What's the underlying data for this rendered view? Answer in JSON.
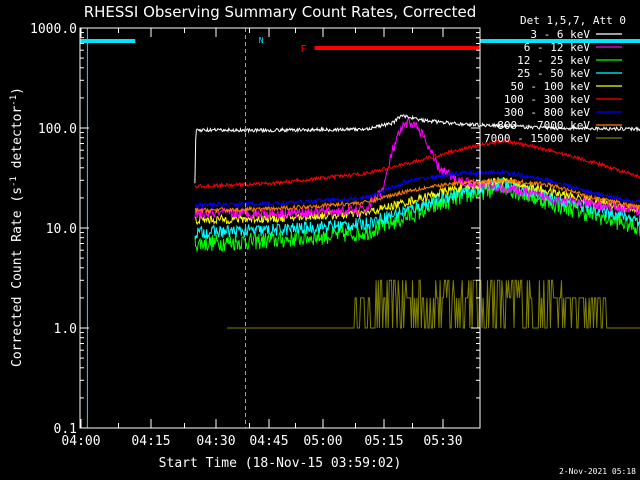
{
  "chart_data": {
    "type": "line",
    "title": "RHESSI Observing Summary Count Rates, Corrected",
    "xlabel": "Start Time (18-Nov-15 03:59:02)",
    "ylabel_parts": {
      "base": "Corrected Count Rate (s",
      "sup1": "-1",
      "mid": " detector",
      "sup2": "-1",
      "end": ")"
    },
    "y_scale": "log",
    "ylim": [
      0.1,
      1000.0
    ],
    "xlim_minutes_after_0400": [
      -1,
      42.5
    ],
    "x_ticks": [
      {
        "minute": 0,
        "label": "04:00"
      },
      {
        "minute": 7.5,
        "label": ""
      },
      {
        "minute": 15,
        "label": "04:15"
      },
      {
        "minute": 22.5,
        "label": ""
      },
      {
        "minute": 30,
        "label": "04:30"
      },
      {
        "minute": 37.5,
        "label": ""
      },
      {
        "minute": 45,
        "label": "04:45"
      },
      {
        "minute": 52.5,
        "label": ""
      },
      {
        "minute": 60,
        "label": "05:00"
      },
      {
        "minute": 67.5,
        "label": ""
      },
      {
        "minute": 75,
        "label": "05:15"
      },
      {
        "minute": 82.5,
        "label": ""
      },
      {
        "minute": 90,
        "label": "05:30"
      }
    ],
    "y_ticks": [
      {
        "value": 0.1,
        "label": "0.1"
      },
      {
        "value": 1.0,
        "label": "1.0"
      },
      {
        "value": 10.0,
        "label": "10.0"
      },
      {
        "value": 100.0,
        "label": "100.0"
      },
      {
        "value": 1000.0,
        "label": "1000.0"
      }
    ],
    "legend": {
      "placement": "top-right",
      "header": "Det 1,5,7, Att 0",
      "entries": [
        {
          "label": "3 - 6 keV",
          "color": "#000000"
        },
        {
          "label": "6 - 12 keV",
          "color": "#ff00ff"
        },
        {
          "label": "12 - 25 keV",
          "color": "#00ff00"
        },
        {
          "label": "25 - 50 keV",
          "color": "#00ffff"
        },
        {
          "label": "50 - 100 keV",
          "color": "#ffff00"
        },
        {
          "label": "100 - 300 keV",
          "color": "#ff0000"
        },
        {
          "label": "300 - 800 keV",
          "color": "#0000ff"
        },
        {
          "label": "800 - 7000 keV",
          "color": "#ff8000"
        },
        {
          "label": "7000 - 15000 keV",
          "color": "#808000"
        }
      ]
    },
    "series": [
      {
        "name": "3 - 6 keV",
        "color": "#000000",
        "x": [
          11.5,
          11.6,
          20,
          30,
          33,
          34,
          36,
          40,
          50,
          60,
          70,
          75,
          80,
          80.1
        ],
        "y": [
          28,
          95,
          95,
          97,
          112,
          135,
          120,
          110,
          100,
          98,
          95,
          95,
          92,
          60
        ],
        "noise": 0.04
      },
      {
        "name": "6 - 12 keV",
        "color": "#ff00ff",
        "x": [
          11.5,
          20,
          30,
          32,
          33,
          34,
          35,
          36,
          37,
          38,
          40,
          45,
          50,
          55,
          60,
          70,
          80
        ],
        "y": [
          14,
          14,
          15,
          25,
          60,
          100,
          115,
          95,
          60,
          40,
          30,
          25,
          20,
          17,
          15,
          14,
          15
        ],
        "noise": 0.12
      },
      {
        "name": "12 - 25 keV",
        "color": "#00ff00",
        "x": [
          11.5,
          20,
          30,
          40,
          45,
          50,
          60,
          70,
          80
        ],
        "y": [
          7,
          7.5,
          9,
          20,
          26,
          18,
          10,
          7.5,
          8
        ],
        "noise": 0.2
      },
      {
        "name": "25 - 50 keV",
        "color": "#00ffff",
        "x": [
          11.5,
          20,
          30,
          40,
          45,
          50,
          60,
          70,
          80
        ],
        "y": [
          9,
          9.5,
          11,
          22,
          28,
          20,
          12,
          9.5,
          10
        ],
        "noise": 0.15
      },
      {
        "name": "50 - 100 keV",
        "color": "#ffff00",
        "x": [
          11.5,
          20,
          30,
          40,
          45,
          50,
          60,
          70,
          80
        ],
        "y": [
          12,
          12.5,
          14,
          25,
          30,
          23,
          15,
          12.5,
          13
        ],
        "noise": 0.1
      },
      {
        "name": "100 - 300 keV",
        "color": "#ff0000",
        "x": [
          11.5,
          20,
          30,
          35,
          40,
          45,
          50,
          55,
          60,
          65,
          70,
          75,
          78,
          80
        ],
        "y": [
          26,
          28,
          35,
          45,
          60,
          75,
          60,
          45,
          32,
          29,
          28,
          28,
          30,
          34
        ],
        "noise": 0.04
      },
      {
        "name": "300 - 800 keV",
        "color": "#0000ff",
        "x": [
          11.5,
          20,
          30,
          35,
          40,
          45,
          50,
          55,
          60,
          70,
          80
        ],
        "y": [
          17,
          17.5,
          20,
          30,
          35,
          36,
          30,
          22,
          18,
          17.5,
          18
        ],
        "noise": 0.05
      },
      {
        "name": "800 - 7000 keV",
        "color": "#ff8000",
        "x": [
          11.5,
          20,
          30,
          35,
          40,
          45,
          50,
          55,
          60,
          70,
          80
        ],
        "y": [
          15,
          15.5,
          18,
          24,
          28,
          30,
          27,
          20,
          16,
          15.5,
          16
        ],
        "noise": 0.05
      },
      {
        "name": "7000 - 15000 keV",
        "color": "#808000",
        "x": [
          15,
          25,
          28,
          30,
          35,
          40,
          45,
          50,
          55,
          60,
          70,
          80
        ],
        "y": [
          1,
          1,
          1,
          1.5,
          2.2,
          2.5,
          2.2,
          1.8,
          1.2,
          1,
          1,
          1
        ],
        "noise": 0.35
      }
    ],
    "flag_bars": [
      {
        "label": "",
        "color": "#00e5ff",
        "start": -1,
        "end": 5
      },
      {
        "label": "",
        "color": "#00e5ff",
        "start": 77,
        "end": 90
      },
      {
        "label": "F",
        "color": "#ff0000",
        "start": 24.5,
        "end": 62
      }
    ],
    "flag_markers": [
      {
        "label": "N",
        "color": "#00e5ff",
        "at": 18
      }
    ],
    "vlines_dashed": {
      "color": "#00e5ff",
      "minutes": [
        17,
        90
      ]
    },
    "vlines_solid": {
      "color": "#00e5ff",
      "minutes": [
        -0.2,
        76
      ]
    }
  },
  "footer_timestamp": "2-Nov-2021 05:18"
}
